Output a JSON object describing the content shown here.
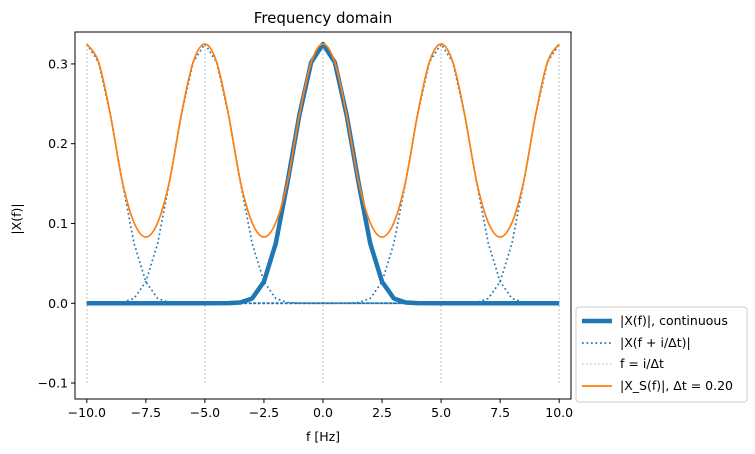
{
  "chart_data": {
    "type": "line",
    "title": "Frequency domain",
    "xlabel": "f [Hz]",
    "ylabel": "|X(f)|",
    "xlim": [
      -10.5,
      10.5
    ],
    "ylim": [
      -0.12,
      0.34
    ],
    "xticks": [
      -10.0,
      -7.5,
      -5.0,
      -2.5,
      0.0,
      2.5,
      5.0,
      7.5,
      10.0
    ],
    "xtick_labels": [
      "−10.0",
      "−7.5",
      "−5.0",
      "−2.5",
      "0.0",
      "2.5",
      "5.0",
      "7.5",
      "10.0"
    ],
    "yticks": [
      -0.1,
      0.0,
      0.1,
      0.2,
      0.3
    ],
    "ytick_labels": [
      "−0.1",
      "0.0",
      "0.1",
      "0.2",
      "0.3"
    ],
    "grid": false,
    "legend_placement": "outside-right-bottom",
    "series": [
      {
        "name": "|X(f)|, continuous",
        "style": "solid-thick",
        "color": "#1f77b4",
        "x": [
          -10,
          -9,
          -8,
          -7,
          -6,
          -5,
          -4,
          -3.5,
          -3,
          -2.5,
          -2,
          -1.5,
          -1,
          -0.5,
          0,
          0.5,
          1,
          1.5,
          2,
          2.5,
          3,
          3.5,
          4,
          5,
          6,
          7,
          8,
          9,
          10
        ],
        "y": [
          0,
          0,
          0,
          0,
          0,
          0,
          0.0001,
          0.001,
          0.006,
          0.027,
          0.075,
          0.152,
          0.236,
          0.302,
          0.325,
          0.302,
          0.236,
          0.152,
          0.075,
          0.027,
          0.006,
          0.001,
          0.0001,
          0,
          0,
          0,
          0,
          0,
          0
        ]
      },
      {
        "name": "|X(f + i/Δt)|",
        "style": "dotted",
        "color": "#1f77b4",
        "centers": [
          -10,
          -5,
          5,
          10
        ],
        "peak": 0.325
      },
      {
        "name": "f = i/Δt",
        "style": "dotted",
        "color": "#c7c7c7",
        "x_positions": [
          -10,
          -5,
          0,
          5,
          10
        ],
        "y_range": [
          -0.1,
          0.325
        ]
      },
      {
        "name": "|X_S(f)|, Δt = 0.20",
        "style": "solid",
        "color": "#ff7f0e",
        "x": [
          -10,
          -9.5,
          -9,
          -8.5,
          -8,
          -7.5,
          -7,
          -6.5,
          -6,
          -5.5,
          -5,
          -4.5,
          -4,
          -3.5,
          -3,
          -2.5,
          -2,
          -1.5,
          -1,
          -0.5,
          0,
          0.5,
          1,
          1.5,
          2,
          2.5,
          3,
          3.5,
          4,
          4.5,
          5,
          5.5,
          6,
          6.5,
          7,
          7.5,
          8,
          8.5,
          9,
          9.5,
          10
        ],
        "y": [
          0.325,
          0.302,
          0.236,
          0.153,
          0.101,
          0.083,
          0.101,
          0.153,
          0.236,
          0.302,
          0.325,
          0.302,
          0.236,
          0.153,
          0.101,
          0.083,
          0.101,
          0.153,
          0.236,
          0.302,
          0.325,
          0.302,
          0.236,
          0.153,
          0.101,
          0.083,
          0.101,
          0.153,
          0.236,
          0.302,
          0.325,
          0.302,
          0.236,
          0.153,
          0.101,
          0.083,
          0.101,
          0.153,
          0.236,
          0.302,
          0.325
        ]
      }
    ]
  }
}
